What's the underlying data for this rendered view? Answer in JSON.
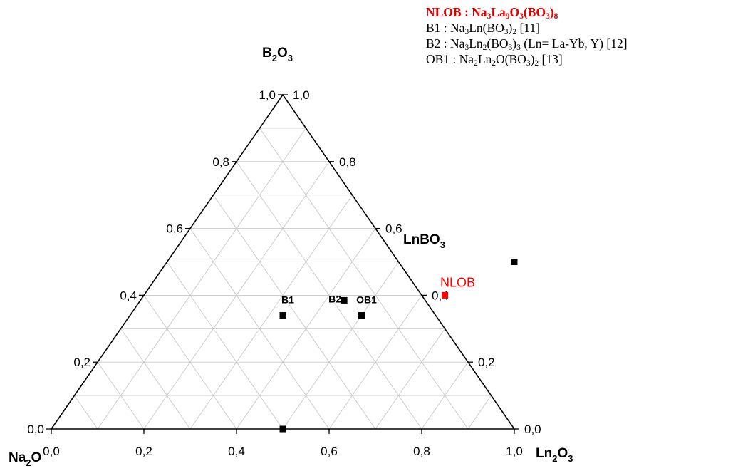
{
  "chart_data": {
    "type": "ternary",
    "corner_labels": {
      "top": {
        "main": "B",
        "sub1": "2",
        "rest": "O",
        "sub2": "3"
      },
      "left": {
        "main": "Na",
        "sub1": "2",
        "rest": "O",
        "sub2": ""
      },
      "right": {
        "main": "Ln",
        "sub1": "2",
        "rest": "O",
        "sub2": "3"
      },
      "side": {
        "main": "LnBO",
        "sub1": "3",
        "rest": "",
        "sub2": ""
      }
    },
    "axes": {
      "bottom_ticks": [
        "0,0",
        "0,2",
        "0,4",
        "0,6",
        "0,8",
        "1,0"
      ],
      "left_ticks": [
        "1,0",
        "0,8",
        "0,6",
        "0,4",
        "0,2",
        "0,0"
      ],
      "right_ticks": [
        "0,0",
        "0,2",
        "0,4",
        "0,6",
        "0,8",
        "1,0"
      ]
    },
    "grid": true,
    "grid_step": 0.1,
    "points": [
      {
        "label": "B1",
        "Ln2O3": 0.33,
        "B2O3": 0.34,
        "color": "#000000"
      },
      {
        "label": "B2",
        "Ln2O3": 0.44,
        "B2O3": 0.385,
        "color": "#000000"
      },
      {
        "label": "OB1",
        "Ln2O3": 0.5,
        "B2O3": 0.34,
        "color": "#000000"
      },
      {
        "label": "NLOB",
        "Ln2O3": 0.65,
        "B2O3": 0.4,
        "color": "#ff0000"
      },
      {
        "label": "",
        "Ln2O3": 0.75,
        "B2O3": 0.5,
        "color": "#000000"
      },
      {
        "label": "",
        "Ln2O3": 0.5,
        "B2O3": 0.0,
        "color": "#000000"
      }
    ]
  },
  "legend": {
    "nlob": {
      "t1": "NLOB : Na",
      "s1": "3",
      "t2": "La",
      "s2": "9",
      "t3": "O",
      "s3": "3",
      "t4": "(BO",
      "s4": "3",
      "t5": ")",
      "s5": "8"
    },
    "b1": {
      "t1": "B1 : Na",
      "s1": "3",
      "t2": "Ln(BO",
      "s2": "3",
      "t3": ")",
      "s3": "2",
      "t4": " [11]"
    },
    "b2": {
      "t1": "B2 : Na",
      "s1": "3",
      "t2": "Ln",
      "s2": "2",
      "t3": "(BO",
      "s3": "3",
      "t4": ")",
      "s4": "3",
      "t5": " (Ln= La-Yb, Y) [12]"
    },
    "ob1": {
      "t1": "OB1 : Na",
      "s1": "2",
      "t2": "Ln",
      "s2": "2",
      "t3": "O(BO",
      "s3": "3",
      "t4": ")",
      "s4": "2",
      "t5": " [13]"
    }
  }
}
